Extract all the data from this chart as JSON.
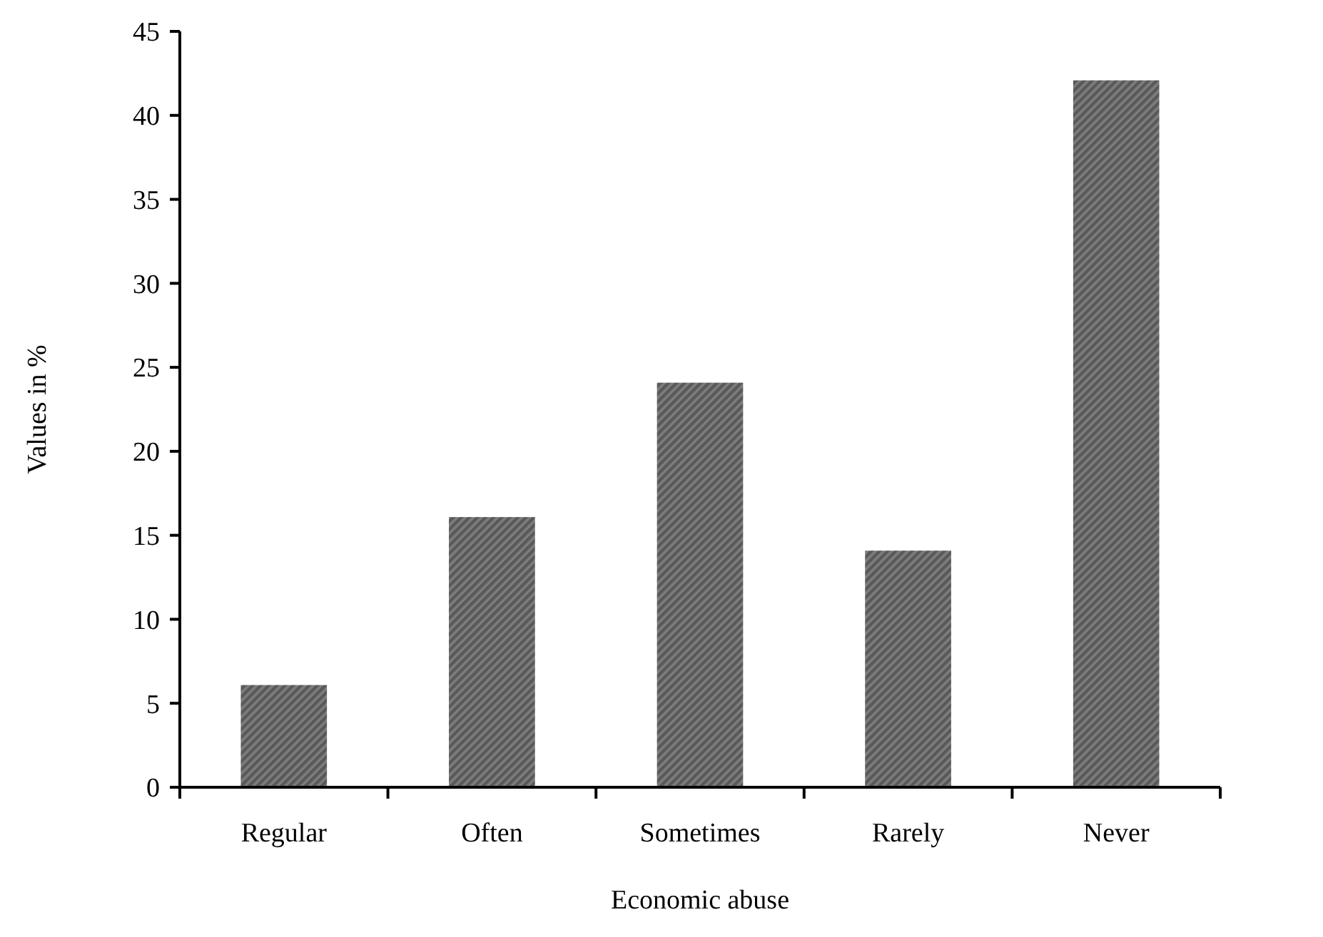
{
  "chart_data": {
    "type": "bar",
    "xlabel": "Economic abuse",
    "ylabel": "Values in %",
    "categories": [
      "Regular",
      "Often",
      "Sometimes",
      "Rarely",
      "Never"
    ],
    "values": [
      6,
      16,
      24,
      14,
      42
    ],
    "color": "#595959",
    "ylim": [
      0,
      45
    ],
    "yticks": [
      0,
      5,
      10,
      15,
      20,
      25,
      30,
      35,
      40,
      45
    ],
    "grid": false
  }
}
